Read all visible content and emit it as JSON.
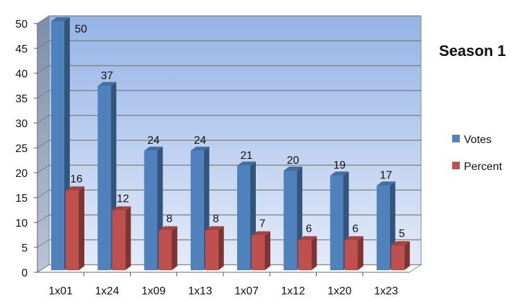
{
  "chart_data": {
    "type": "bar",
    "title": "Season 1",
    "xlabel": "",
    "ylabel": "",
    "categories": [
      "1x01",
      "1x24",
      "1x09",
      "1x13",
      "1x07",
      "1x12",
      "1x20",
      "1x23"
    ],
    "series": [
      {
        "name": "Votes",
        "values": [
          50,
          37,
          24,
          24,
          21,
          20,
          19,
          17
        ]
      },
      {
        "name": "Percent",
        "values": [
          16,
          12,
          8,
          8,
          7,
          6,
          6,
          5
        ]
      }
    ],
    "ylim": [
      0,
      50
    ],
    "yticks": [
      0,
      5,
      10,
      15,
      20,
      25,
      30,
      35,
      40,
      45,
      50
    ],
    "grid": true,
    "legend_position": "right",
    "colors": {
      "Votes": "#4f81bd",
      "Percent": "#c0504d"
    }
  }
}
